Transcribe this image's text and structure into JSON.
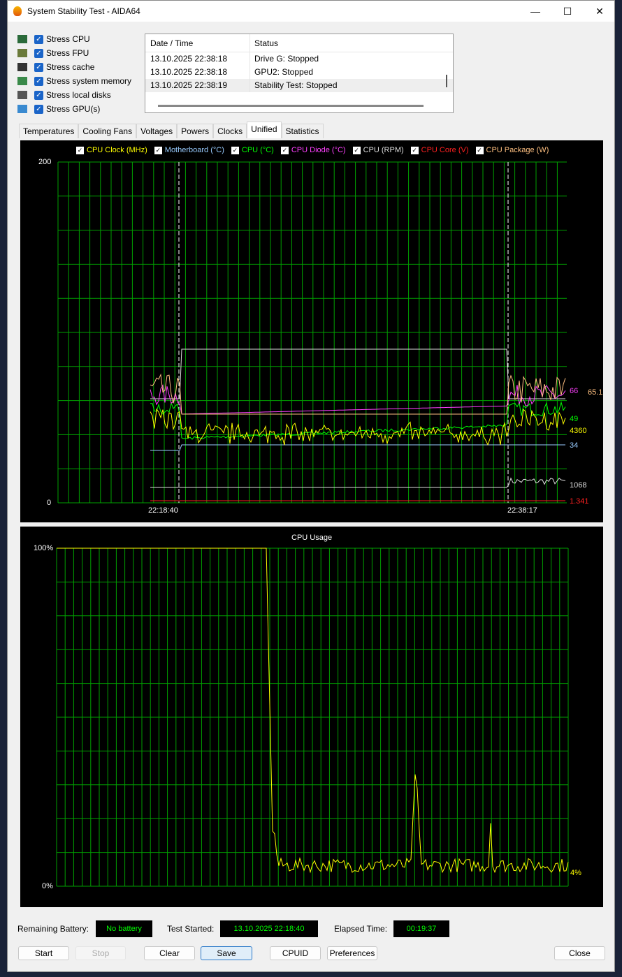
{
  "window": {
    "title": "System Stability Test - AIDA64",
    "minimize": "—",
    "maximize": "☐",
    "close": "✕"
  },
  "stress": [
    {
      "label": "Stress CPU",
      "checked": true,
      "icon": "cpu-icon"
    },
    {
      "label": "Stress FPU",
      "checked": true,
      "icon": "fpu-icon"
    },
    {
      "label": "Stress cache",
      "checked": true,
      "icon": "cache-icon"
    },
    {
      "label": "Stress system memory",
      "checked": true,
      "icon": "memory-icon"
    },
    {
      "label": "Stress local disks",
      "checked": true,
      "icon": "disk-icon"
    },
    {
      "label": "Stress GPU(s)",
      "checked": true,
      "icon": "gpu-icon"
    }
  ],
  "log": {
    "headers": [
      "Date / Time",
      "Status"
    ],
    "rows": [
      [
        "13.10.2025 22:38:18",
        "Drive G: Stopped"
      ],
      [
        "13.10.2025 22:38:18",
        "GPU2: Stopped"
      ],
      [
        "13.10.2025 22:38:19",
        "Stability Test: Stopped"
      ]
    ]
  },
  "tabs": [
    "Temperatures",
    "Cooling Fans",
    "Voltages",
    "Powers",
    "Clocks",
    "Unified",
    "Statistics"
  ],
  "active_tab": "Unified",
  "unified": {
    "y_max": "200",
    "y_min": "0",
    "x_start": "22:18:40",
    "x_end": "22:38:17",
    "legend": [
      {
        "label": "CPU Clock (MHz)",
        "color": "#ffff00",
        "value": "4360"
      },
      {
        "label": "Motherboard (°C)",
        "color": "#99ccff",
        "value": "34"
      },
      {
        "label": "CPU (°C)",
        "color": "#00ff00",
        "value": "49"
      },
      {
        "label": "CPU Diode (°C)",
        "color": "#ff40ff",
        "value": "66"
      },
      {
        "label": "CPU (RPM)",
        "color": "#dddddd",
        "value": "1068"
      },
      {
        "label": "CPU Core (V)",
        "color": "#ff2020",
        "value": "1.341"
      },
      {
        "label": "CPU Package (W)",
        "color": "#ffc080",
        "value": "65.1"
      }
    ]
  },
  "usage": {
    "title": "CPU Usage",
    "y_max": "100%",
    "y_min": "0%",
    "value": "4%",
    "color": "#ffff00"
  },
  "status": {
    "battery_label": "Remaining Battery:",
    "battery": "No battery",
    "started_label": "Test Started:",
    "started": "13.10.2025 22:18:40",
    "elapsed_label": "Elapsed Time:",
    "elapsed": "00:19:37"
  },
  "buttons": {
    "start": "Start",
    "stop": "Stop",
    "clear": "Clear",
    "save": "Save",
    "cpuid": "CPUID",
    "preferences": "Preferences",
    "close": "Close"
  }
}
